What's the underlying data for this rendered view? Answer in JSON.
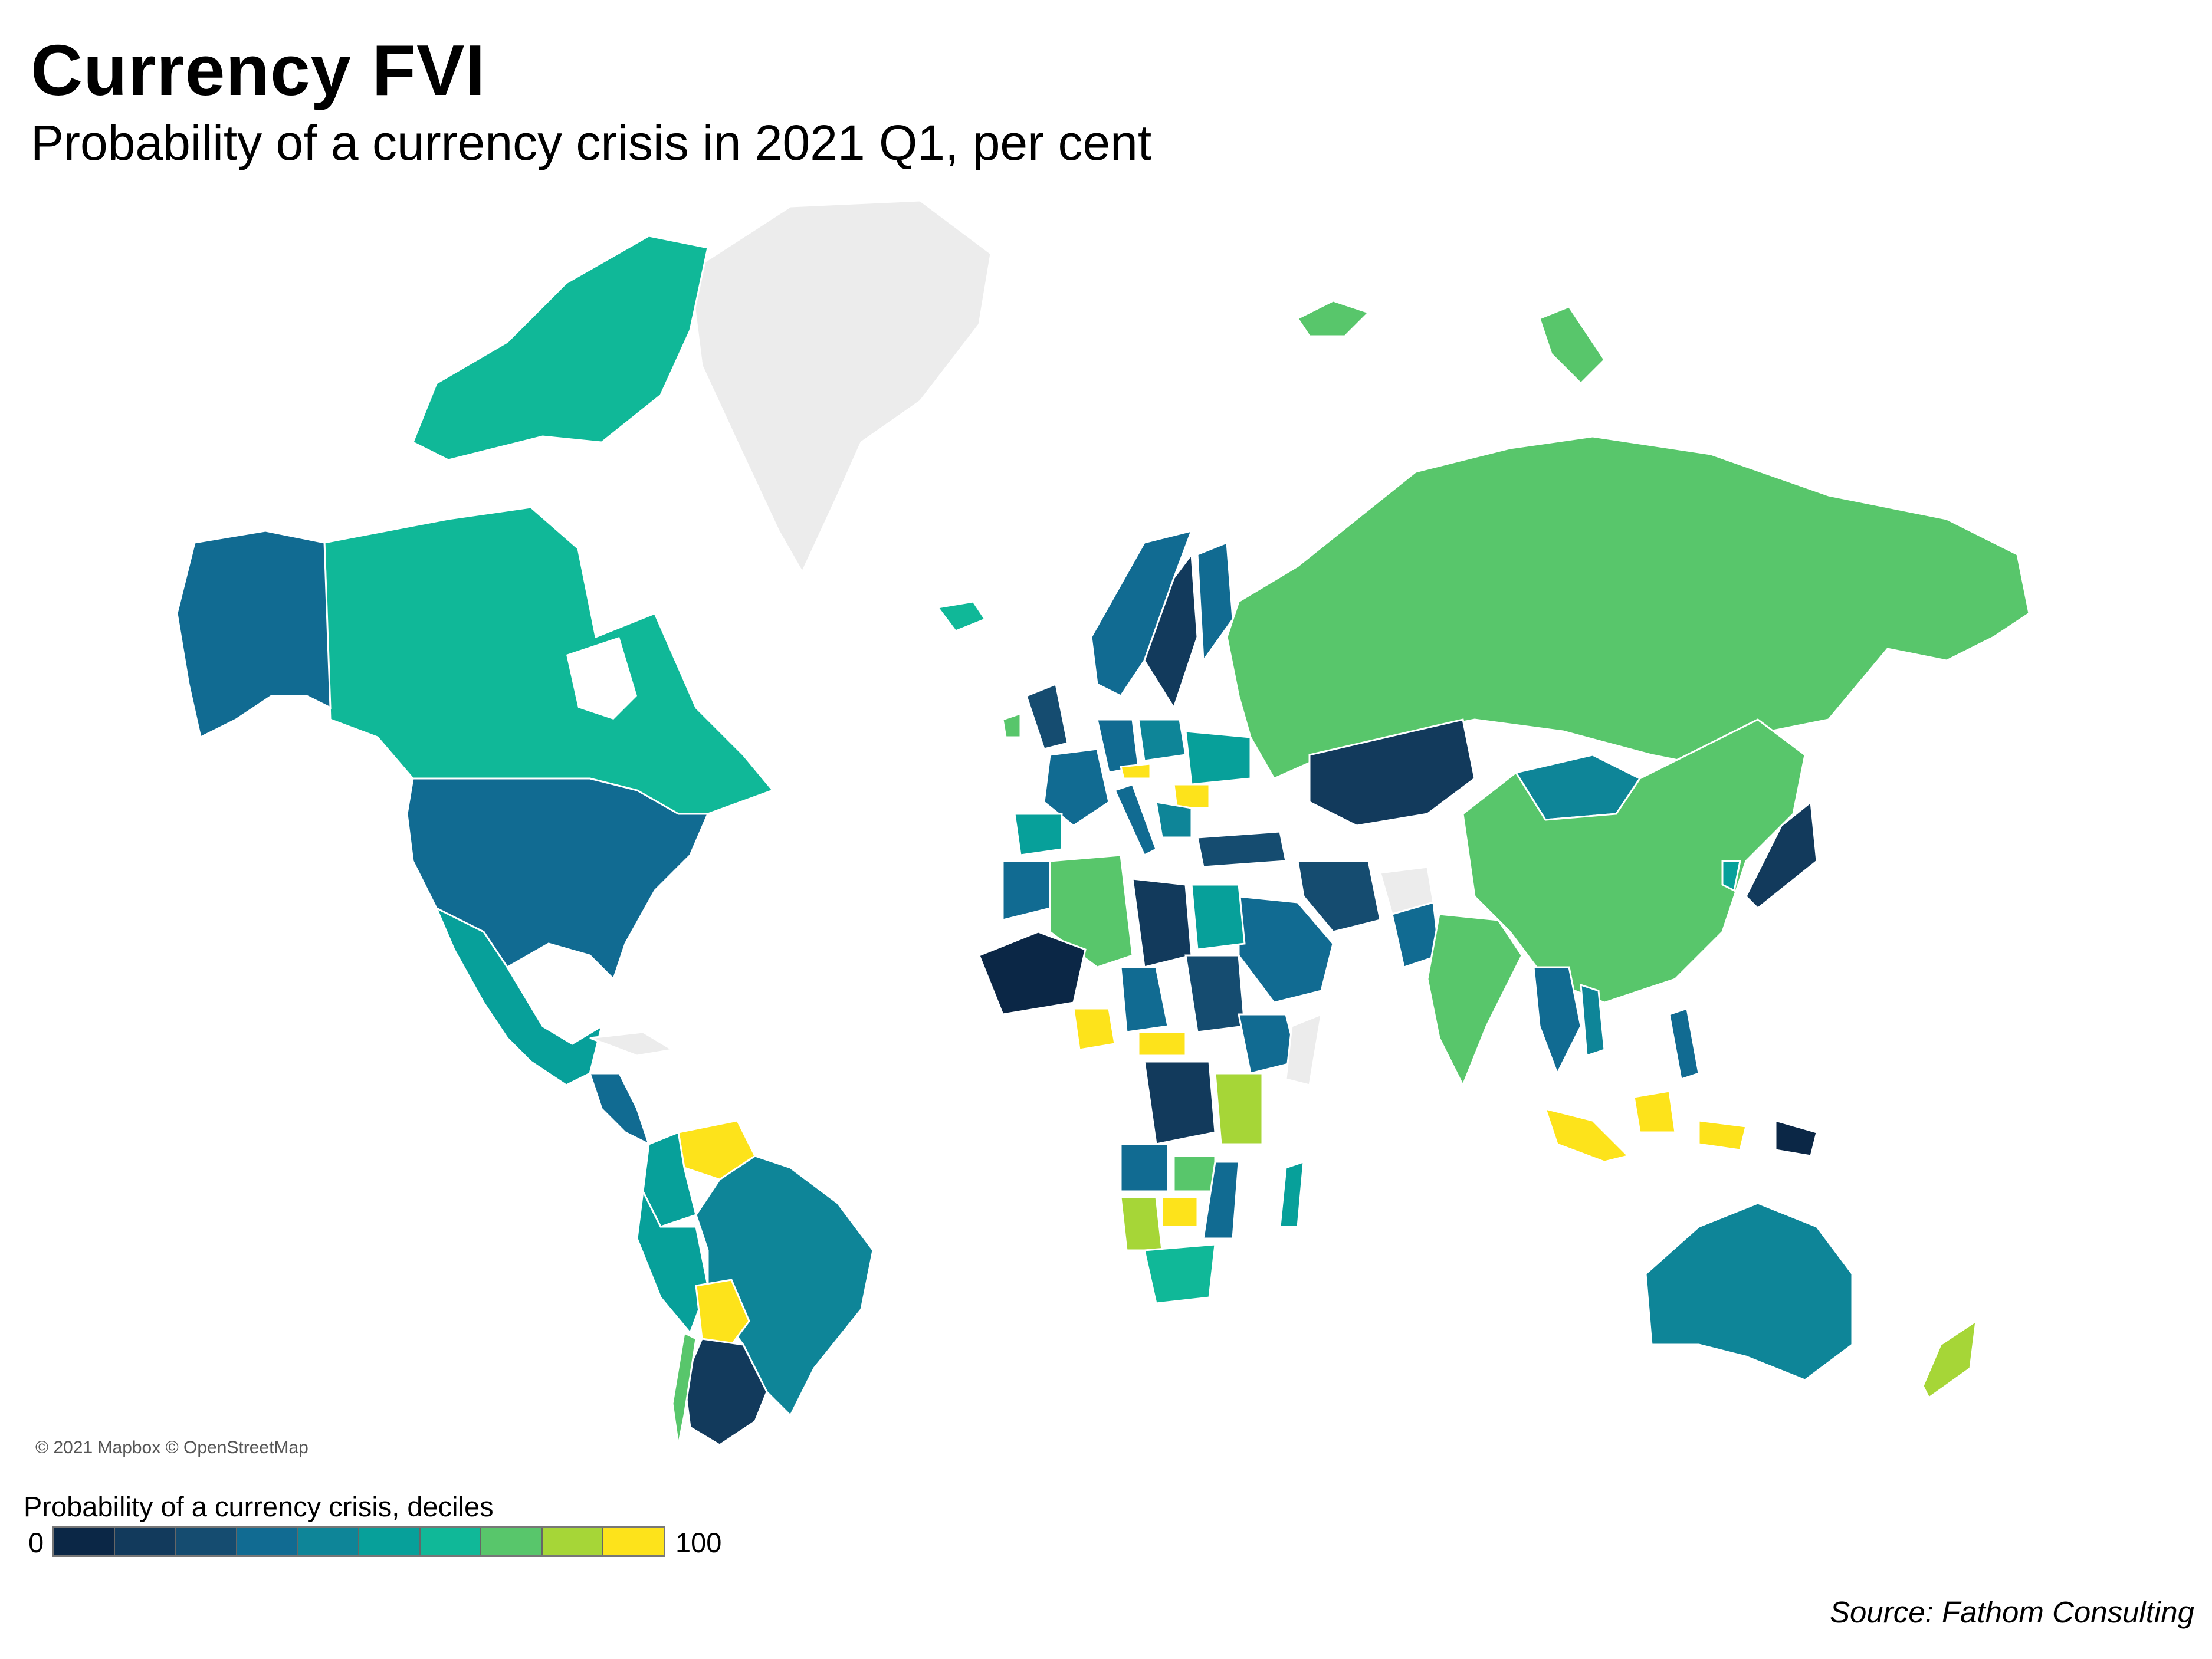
{
  "title": "Currency FVI",
  "subtitle": "Probability of a currency crisis in 2021 Q1, per cent",
  "attribution": "© 2021 Mapbox © OpenStreetMap",
  "legend": {
    "title": "Probability of a currency crisis, deciles",
    "min_label": "0",
    "max_label": "100",
    "colors": [
      "#0b2746",
      "#123a5c",
      "#154c70",
      "#116b92",
      "#0e8598",
      "#07a09a",
      "#10b898",
      "#58c66b",
      "#a6d637",
      "#fde31b"
    ]
  },
  "source": "Source: Fathom Consulting",
  "map_colors": {
    "no_data": "#ececec",
    "water": "#ffffff"
  }
}
